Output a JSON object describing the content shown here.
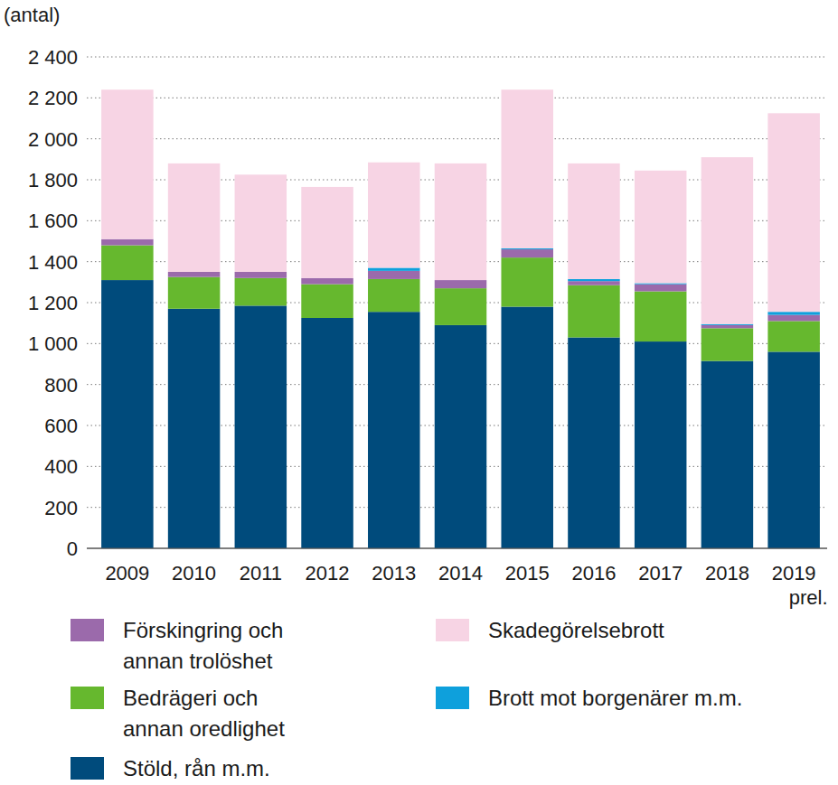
{
  "chart_data": {
    "type": "bar",
    "stacked": true,
    "grid": true,
    "legend": "bottom",
    "y_label": "(antal)",
    "categories": [
      "2009",
      "2010",
      "2011",
      "2012",
      "2013",
      "2014",
      "2015",
      "2016",
      "2017",
      "2018",
      "2019 prel."
    ],
    "ylim": [
      0,
      2400
    ],
    "yticks": [
      0,
      200,
      400,
      600,
      800,
      {
        "value": 1000,
        "label": "1 000"
      },
      {
        "value": 1200,
        "label": "1 200"
      },
      {
        "value": 1400,
        "label": "1 400"
      },
      {
        "value": 1600,
        "label": "1 600"
      },
      {
        "value": 1800,
        "label": "1 800"
      },
      {
        "value": 2000,
        "label": "2 000"
      },
      {
        "value": 2200,
        "label": "2 200"
      },
      {
        "value": 2400,
        "label": "2 400"
      }
    ],
    "series": [
      {
        "name": "Stöld, rån m.m.",
        "color": "#004b7c",
        "values": [
          1310,
          1170,
          1185,
          1125,
          1155,
          1090,
          1180,
          1030,
          1010,
          915,
          960
        ]
      },
      {
        "name": "Bedrägeri och annan oredlighet",
        "color": "#66b82e",
        "values": [
          170,
          155,
          135,
          165,
          160,
          180,
          240,
          255,
          245,
          160,
          150
        ]
      },
      {
        "name": "Förskingring och annan trolöshet",
        "color": "#9b6aab",
        "values": [
          30,
          25,
          30,
          30,
          40,
          40,
          40,
          20,
          35,
          15,
          30
        ]
      },
      {
        "name": "Brott mot borgenärer m.m.",
        "color": "#0ea0dc",
        "values": [
          0,
          0,
          0,
          0,
          15,
          0,
          5,
          10,
          5,
          5,
          15
        ]
      },
      {
        "name": "Skadegörelsebrott",
        "color": "#f7d4e4",
        "values": [
          730,
          530,
          475,
          445,
          515,
          570,
          775,
          565,
          550,
          815,
          970
        ]
      }
    ]
  }
}
